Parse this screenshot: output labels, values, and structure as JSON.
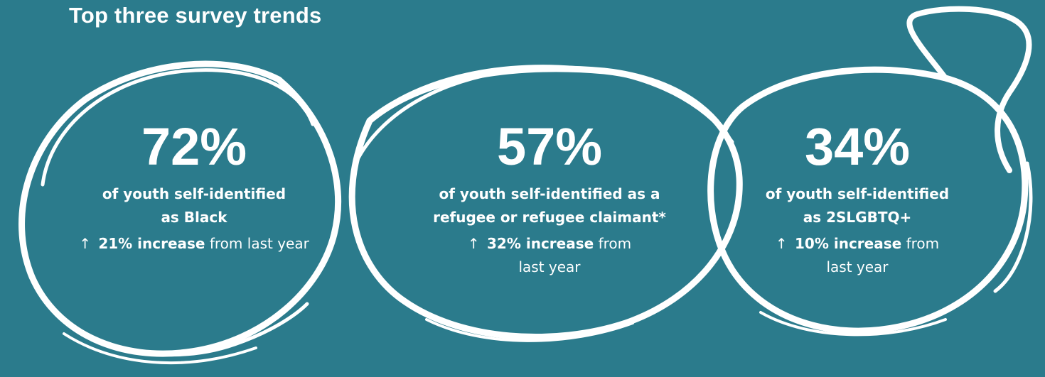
{
  "title": "Top three survey trends",
  "stats": [
    {
      "value": "72%",
      "description_lines": [
        "of youth self-identified",
        "as Black"
      ],
      "arrow": "↑",
      "change_bold": "21% increase",
      "change_rest": "from last year",
      "change_rest_lines": [
        "from last year"
      ]
    },
    {
      "value": "57%",
      "description_lines": [
        "of youth self-identified as a",
        "refugee or refugee claimant*"
      ],
      "arrow": "↑",
      "change_bold": "32% increase",
      "change_rest_lines": [
        "from",
        "last year"
      ]
    },
    {
      "value": "34%",
      "description_lines": [
        "of youth self-identified",
        "as 2SLGBTQ+"
      ],
      "arrow": "↑",
      "change_bold": "10% increase",
      "change_rest_lines": [
        "from",
        "last year"
      ]
    }
  ],
  "colors": {
    "background": "#2b7b8c",
    "foreground": "#ffffff"
  },
  "icons": [
    "up-arrow-icon"
  ]
}
